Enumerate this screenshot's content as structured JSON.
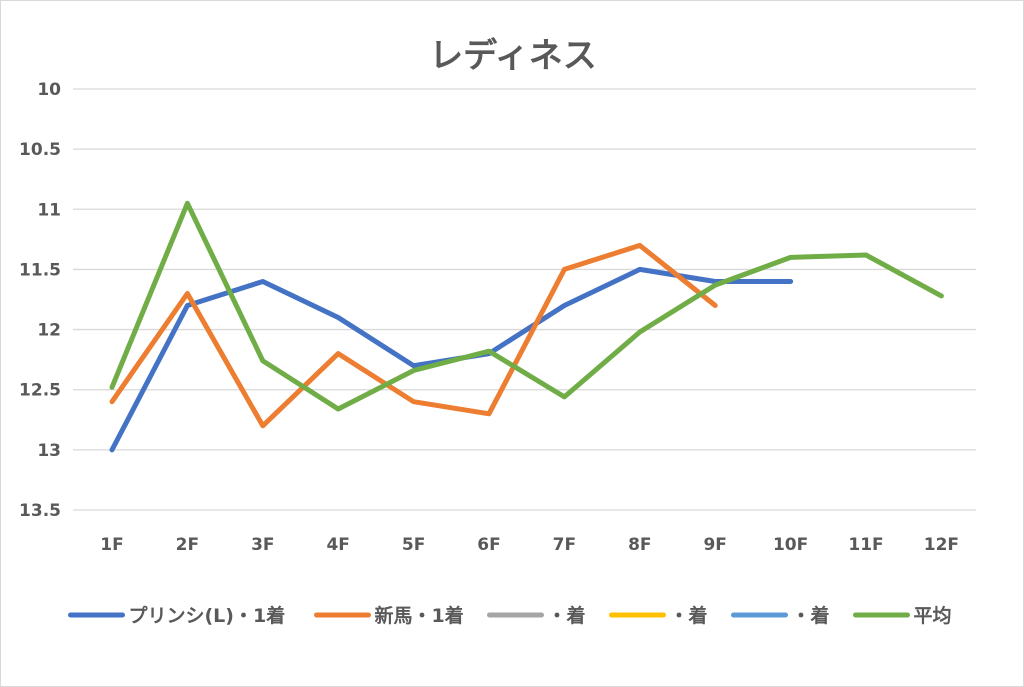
{
  "chart_data": {
    "type": "line",
    "title": "レディネス",
    "xlabel": "",
    "ylabel": "",
    "categories": [
      "1F",
      "2F",
      "3F",
      "4F",
      "5F",
      "6F",
      "7F",
      "8F",
      "9F",
      "10F",
      "11F",
      "12F"
    ],
    "y_axis": {
      "min": 10,
      "max": 13.5,
      "step": 0.5,
      "reversed": true,
      "tick_labels": [
        "10",
        "10.5",
        "11",
        "11.5",
        "12",
        "12.5",
        "13",
        "13.5"
      ]
    },
    "grid": true,
    "legend_position": "bottom",
    "series": [
      {
        "name": "プリンシ(L)・1着",
        "color": "#4472c4",
        "values": [
          13.0,
          11.8,
          11.6,
          11.9,
          12.3,
          12.2,
          11.8,
          11.5,
          11.6,
          11.6,
          null,
          null
        ]
      },
      {
        "name": "新馬・1着",
        "color": "#ed7d31",
        "values": [
          12.6,
          11.7,
          12.8,
          12.2,
          12.6,
          12.7,
          11.5,
          11.3,
          11.8,
          null,
          null,
          null
        ]
      },
      {
        "name": "・着",
        "color": "#a5a5a5",
        "values": [
          null,
          null,
          null,
          null,
          null,
          null,
          null,
          null,
          null,
          null,
          null,
          null
        ]
      },
      {
        "name": "・着",
        "color": "#ffc000",
        "values": [
          null,
          null,
          null,
          null,
          null,
          null,
          null,
          null,
          null,
          null,
          null,
          null
        ]
      },
      {
        "name": "・着",
        "color": "#5b9bd5",
        "values": [
          null,
          null,
          null,
          null,
          null,
          null,
          null,
          null,
          null,
          null,
          null,
          null
        ]
      },
      {
        "name": "平均",
        "color": "#70ad47",
        "values": [
          12.48,
          10.95,
          12.26,
          12.66,
          12.34,
          12.18,
          12.56,
          12.02,
          11.63,
          11.4,
          11.38,
          11.72
        ]
      }
    ]
  }
}
